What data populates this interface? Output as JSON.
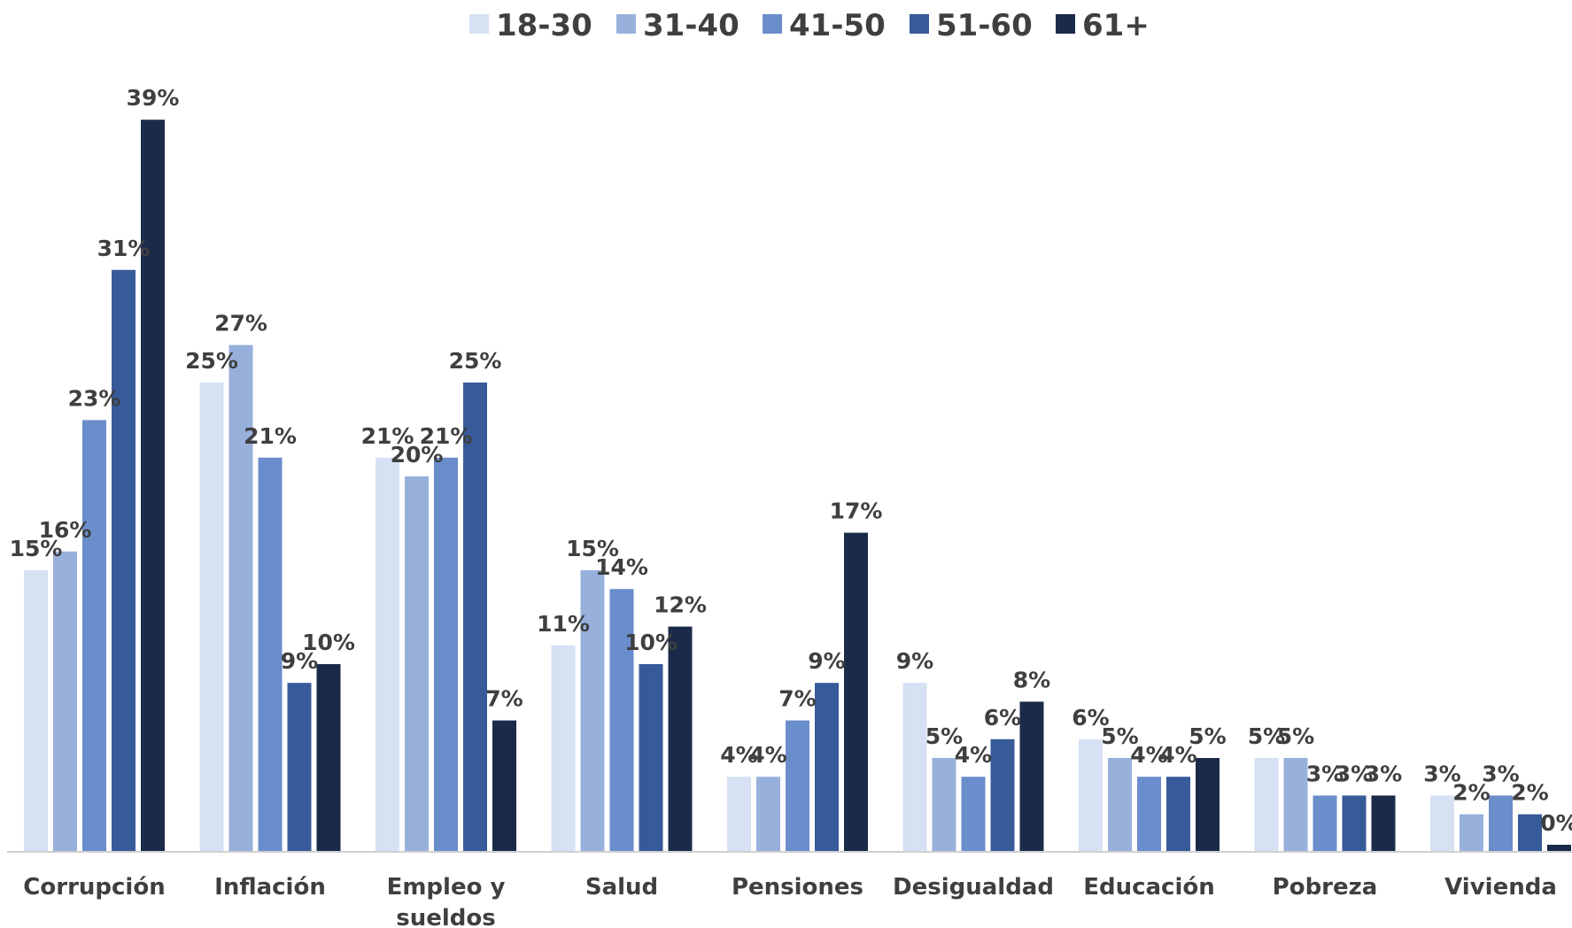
{
  "chart_data": {
    "type": "bar",
    "title": "",
    "xlabel": "",
    "ylabel": "",
    "ylim": [
      0,
      40
    ],
    "grid": false,
    "legend_position": "top-center",
    "categories": [
      [
        "Corrupción"
      ],
      [
        "Inflación"
      ],
      [
        "Empleo y",
        "sueldos"
      ],
      [
        "Salud"
      ],
      [
        "Pensiones"
      ],
      [
        "Desigualdad"
      ],
      [
        "Educación"
      ],
      [
        "Pobreza"
      ],
      [
        "Vivienda"
      ]
    ],
    "series": [
      {
        "name": "18-30",
        "color": "#d6e1f4",
        "values": [
          15,
          25,
          21,
          11,
          4,
          9,
          6,
          5,
          3
        ]
      },
      {
        "name": "31-40",
        "color": "#98b0dc",
        "values": [
          16,
          27,
          20,
          15,
          4,
          5,
          5,
          5,
          2
        ]
      },
      {
        "name": "41-50",
        "color": "#6a8dcc",
        "values": [
          23,
          21,
          21,
          14,
          7,
          4,
          4,
          3,
          3
        ]
      },
      {
        "name": "51-60",
        "color": "#375a99",
        "values": [
          31,
          9,
          25,
          10,
          9,
          6,
          4,
          3,
          2
        ]
      },
      {
        "name": "61+",
        "color": "#1c2a4a",
        "values": [
          39,
          10,
          7,
          12,
          17,
          8,
          5,
          3,
          0
        ]
      }
    ],
    "value_suffix": "%"
  }
}
